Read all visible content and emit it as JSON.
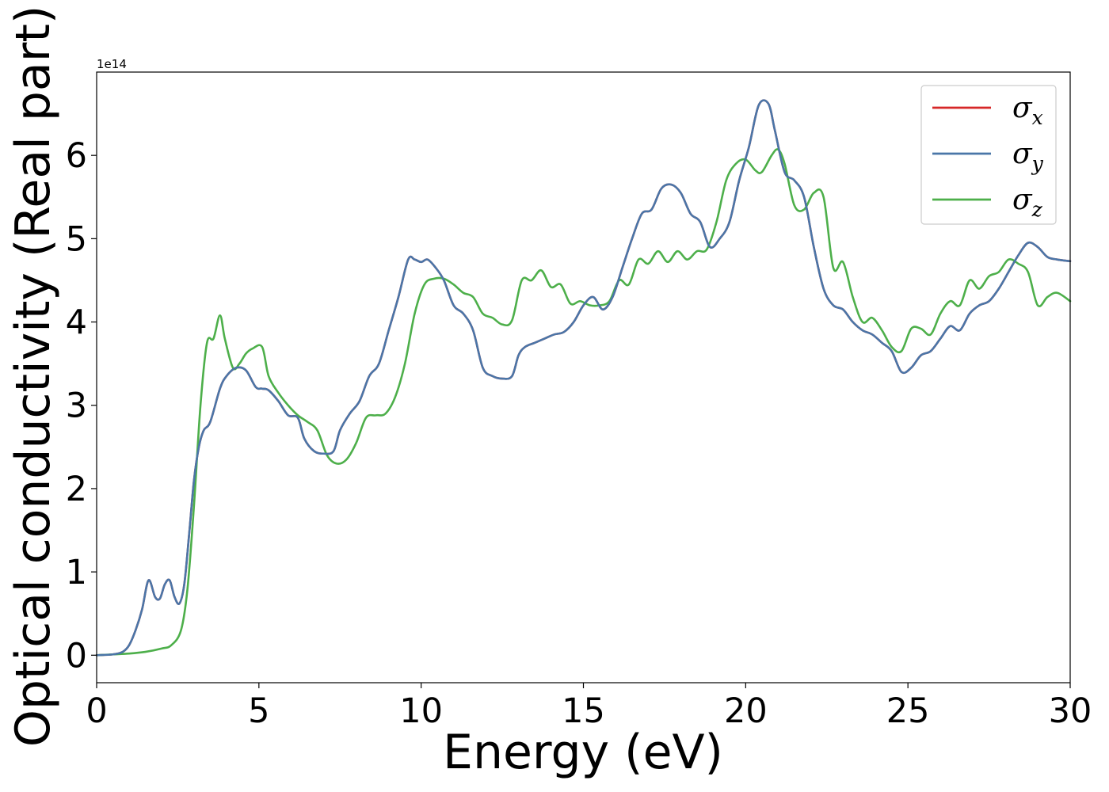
{
  "chart_data": {
    "type": "line",
    "xlabel": "Energy (eV)",
    "ylabel": "Optical conductivity (Real part)",
    "y_offset_label": "1e14",
    "xlim": [
      0,
      30
    ],
    "ylim": [
      -0.33,
      7.0
    ],
    "x_ticks": [
      0,
      5,
      10,
      15,
      20,
      25,
      30
    ],
    "y_ticks": [
      0,
      1,
      2,
      3,
      4,
      5,
      6
    ],
    "grid": false,
    "legend_position": "top-right",
    "series": [
      {
        "name": "σx",
        "symbol": "σ",
        "subscript": "x",
        "color": "#d62728",
        "x": [
          0,
          0.5,
          0.8,
          1.0,
          1.2,
          1.4,
          1.6,
          1.8,
          1.95,
          2.1,
          2.25,
          2.4,
          2.55,
          2.7,
          2.85,
          3.0,
          3.15,
          3.3,
          3.5,
          3.8,
          4.0,
          4.3,
          4.6,
          4.9,
          5.1,
          5.3,
          5.6,
          5.9,
          6.2,
          6.4,
          6.7,
          7.0,
          7.3,
          7.5,
          7.8,
          8.1,
          8.4,
          8.7,
          9.0,
          9.3,
          9.6,
          9.8,
          10.0,
          10.2,
          10.45,
          10.7,
          11.0,
          11.3,
          11.6,
          11.9,
          12.2,
          12.5,
          12.8,
          13.0,
          13.2,
          13.5,
          13.8,
          14.1,
          14.4,
          14.7,
          15.0,
          15.3,
          15.6,
          15.9,
          16.2,
          16.5,
          16.8,
          17.1,
          17.4,
          17.7,
          18.0,
          18.3,
          18.6,
          18.9,
          19.2,
          19.5,
          19.8,
          20.1,
          20.4,
          20.7,
          20.9,
          21.2,
          21.5,
          21.8,
          22.1,
          22.4,
          22.7,
          23.0,
          23.3,
          23.6,
          23.9,
          24.2,
          24.5,
          24.8,
          25.1,
          25.4,
          25.7,
          26.0,
          26.3,
          26.6,
          26.9,
          27.2,
          27.5,
          27.8,
          28.1,
          28.4,
          28.7,
          29.0,
          29.3,
          29.6,
          30.0
        ],
        "values": [
          0,
          0.01,
          0.04,
          0.12,
          0.3,
          0.55,
          0.9,
          0.7,
          0.68,
          0.85,
          0.9,
          0.7,
          0.62,
          0.85,
          1.45,
          2.1,
          2.5,
          2.7,
          2.8,
          3.2,
          3.35,
          3.45,
          3.42,
          3.22,
          3.2,
          3.18,
          3.05,
          2.88,
          2.85,
          2.6,
          2.45,
          2.42,
          2.45,
          2.7,
          2.9,
          3.05,
          3.35,
          3.5,
          3.9,
          4.3,
          4.75,
          4.75,
          4.72,
          4.75,
          4.65,
          4.5,
          4.2,
          4.1,
          3.9,
          3.45,
          3.35,
          3.32,
          3.35,
          3.6,
          3.7,
          3.75,
          3.8,
          3.85,
          3.88,
          4.0,
          4.2,
          4.3,
          4.15,
          4.3,
          4.65,
          5.0,
          5.3,
          5.35,
          5.6,
          5.65,
          5.55,
          5.3,
          5.2,
          4.9,
          5.0,
          5.2,
          5.7,
          6.1,
          6.6,
          6.62,
          6.3,
          5.8,
          5.7,
          5.5,
          4.9,
          4.4,
          4.2,
          4.15,
          4.0,
          3.9,
          3.85,
          3.75,
          3.65,
          3.4,
          3.45,
          3.6,
          3.65,
          3.8,
          3.95,
          3.9,
          4.1,
          4.2,
          4.25,
          4.4,
          4.6,
          4.8,
          4.95,
          4.9,
          4.78,
          4.75,
          4.73
        ]
      },
      {
        "name": "σy",
        "symbol": "σ",
        "subscript": "y",
        "color": "#4a76a8",
        "x": [
          0,
          0.5,
          0.8,
          1.0,
          1.2,
          1.4,
          1.6,
          1.8,
          1.95,
          2.1,
          2.25,
          2.4,
          2.55,
          2.7,
          2.85,
          3.0,
          3.15,
          3.3,
          3.5,
          3.8,
          4.0,
          4.3,
          4.6,
          4.9,
          5.1,
          5.3,
          5.6,
          5.9,
          6.2,
          6.4,
          6.7,
          7.0,
          7.3,
          7.5,
          7.8,
          8.1,
          8.4,
          8.7,
          9.0,
          9.3,
          9.6,
          9.8,
          10.0,
          10.2,
          10.45,
          10.7,
          11.0,
          11.3,
          11.6,
          11.9,
          12.2,
          12.5,
          12.8,
          13.0,
          13.2,
          13.5,
          13.8,
          14.1,
          14.4,
          14.7,
          15.0,
          15.3,
          15.6,
          15.9,
          16.2,
          16.5,
          16.8,
          17.1,
          17.4,
          17.7,
          18.0,
          18.3,
          18.6,
          18.9,
          19.2,
          19.5,
          19.8,
          20.1,
          20.4,
          20.7,
          20.9,
          21.2,
          21.5,
          21.8,
          22.1,
          22.4,
          22.7,
          23.0,
          23.3,
          23.6,
          23.9,
          24.2,
          24.5,
          24.8,
          25.1,
          25.4,
          25.7,
          26.0,
          26.3,
          26.6,
          26.9,
          27.2,
          27.5,
          27.8,
          28.1,
          28.4,
          28.7,
          29.0,
          29.3,
          29.6,
          30.0
        ],
        "values": [
          0,
          0.01,
          0.04,
          0.12,
          0.3,
          0.55,
          0.9,
          0.7,
          0.68,
          0.85,
          0.9,
          0.7,
          0.62,
          0.85,
          1.45,
          2.1,
          2.5,
          2.7,
          2.8,
          3.2,
          3.35,
          3.45,
          3.42,
          3.22,
          3.2,
          3.18,
          3.05,
          2.88,
          2.85,
          2.6,
          2.45,
          2.42,
          2.45,
          2.7,
          2.9,
          3.05,
          3.35,
          3.5,
          3.9,
          4.3,
          4.75,
          4.75,
          4.72,
          4.75,
          4.65,
          4.5,
          4.2,
          4.1,
          3.9,
          3.45,
          3.35,
          3.32,
          3.35,
          3.6,
          3.7,
          3.75,
          3.8,
          3.85,
          3.88,
          4.0,
          4.2,
          4.3,
          4.15,
          4.3,
          4.65,
          5.0,
          5.3,
          5.35,
          5.6,
          5.65,
          5.55,
          5.3,
          5.2,
          4.9,
          5.0,
          5.2,
          5.7,
          6.1,
          6.6,
          6.62,
          6.3,
          5.8,
          5.7,
          5.5,
          4.9,
          4.4,
          4.2,
          4.15,
          4.0,
          3.9,
          3.85,
          3.75,
          3.65,
          3.4,
          3.45,
          3.6,
          3.65,
          3.8,
          3.95,
          3.9,
          4.1,
          4.2,
          4.25,
          4.4,
          4.6,
          4.8,
          4.95,
          4.9,
          4.78,
          4.75,
          4.73
        ]
      },
      {
        "name": "σz",
        "symbol": "σ",
        "subscript": "z",
        "color": "#4daf4a",
        "x": [
          0,
          0.5,
          1.0,
          1.5,
          2.0,
          2.3,
          2.6,
          2.8,
          3.0,
          3.2,
          3.4,
          3.6,
          3.8,
          3.95,
          4.2,
          4.4,
          4.6,
          4.8,
          5.1,
          5.3,
          5.6,
          5.9,
          6.2,
          6.5,
          6.8,
          7.1,
          7.4,
          7.7,
          8.0,
          8.3,
          8.6,
          8.9,
          9.2,
          9.5,
          9.8,
          10.1,
          10.4,
          10.7,
          11.0,
          11.3,
          11.6,
          11.9,
          12.2,
          12.5,
          12.8,
          13.1,
          13.4,
          13.7,
          14.0,
          14.3,
          14.6,
          14.9,
          15.2,
          15.5,
          15.8,
          16.1,
          16.4,
          16.7,
          17.0,
          17.3,
          17.6,
          17.9,
          18.2,
          18.5,
          18.8,
          19.1,
          19.4,
          19.7,
          20.0,
          20.3,
          20.5,
          20.8,
          21.0,
          21.2,
          21.5,
          21.8,
          22.1,
          22.4,
          22.7,
          23.0,
          23.3,
          23.6,
          23.9,
          24.2,
          24.5,
          24.8,
          25.1,
          25.4,
          25.7,
          26.0,
          26.3,
          26.6,
          26.9,
          27.2,
          27.5,
          27.8,
          28.1,
          28.4,
          28.7,
          29.0,
          29.3,
          29.6,
          30.0
        ],
        "values": [
          0,
          0.01,
          0.02,
          0.04,
          0.08,
          0.12,
          0.3,
          0.8,
          1.8,
          3.0,
          3.75,
          3.8,
          4.08,
          3.8,
          3.45,
          3.5,
          3.62,
          3.68,
          3.7,
          3.35,
          3.15,
          3.0,
          2.88,
          2.8,
          2.7,
          2.4,
          2.3,
          2.35,
          2.55,
          2.85,
          2.88,
          2.9,
          3.1,
          3.5,
          4.1,
          4.45,
          4.52,
          4.52,
          4.45,
          4.35,
          4.3,
          4.1,
          4.05,
          3.97,
          4.02,
          4.5,
          4.5,
          4.62,
          4.42,
          4.45,
          4.22,
          4.25,
          4.2,
          4.2,
          4.25,
          4.5,
          4.45,
          4.75,
          4.7,
          4.85,
          4.72,
          4.85,
          4.75,
          4.85,
          4.87,
          5.2,
          5.7,
          5.9,
          5.95,
          5.82,
          5.8,
          6.0,
          6.07,
          5.9,
          5.4,
          5.35,
          5.55,
          5.5,
          4.65,
          4.72,
          4.3,
          4.0,
          4.05,
          3.9,
          3.7,
          3.65,
          3.92,
          3.92,
          3.85,
          4.1,
          4.25,
          4.2,
          4.5,
          4.4,
          4.55,
          4.6,
          4.75,
          4.7,
          4.6,
          4.2,
          4.3,
          4.35,
          4.25
        ]
      }
    ]
  }
}
